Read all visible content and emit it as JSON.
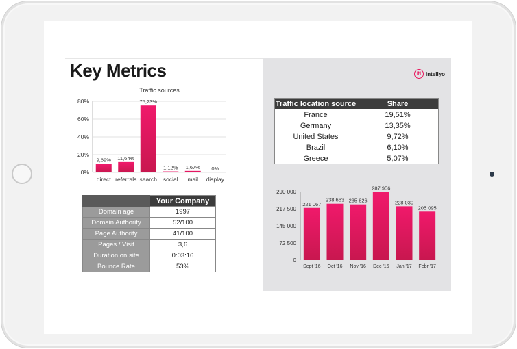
{
  "page": {
    "title": "Key Metrics",
    "brand": "intellyo",
    "brand_mark": "IN",
    "accent_color": "#e8175d"
  },
  "traffic_chart": {
    "title": "Traffic sources"
  },
  "company_table": {
    "header": "Your Company",
    "rows": [
      {
        "label": "Domain age",
        "value": "1997"
      },
      {
        "label": "Domain Authority",
        "value": "52/100"
      },
      {
        "label": "Page Authority",
        "value": "41/100"
      },
      {
        "label": "Pages / Visit",
        "value": "3,6"
      },
      {
        "label": "Duration on site",
        "value": "0:03:16"
      },
      {
        "label": "Bounce Rate",
        "value": "53%"
      }
    ]
  },
  "location_table": {
    "headers": [
      "Traffic location source",
      "Share"
    ],
    "rows": [
      {
        "location": "France",
        "share": "19,51%"
      },
      {
        "location": "Germany",
        "share": "13,35%"
      },
      {
        "location": "United States",
        "share": "9,72%"
      },
      {
        "location": "Brazil",
        "share": "6,10%"
      },
      {
        "location": "Greece",
        "share": "5,07%"
      }
    ]
  },
  "chart_data": [
    {
      "type": "bar",
      "title": "Traffic sources",
      "categories": [
        "direct",
        "referrals",
        "search",
        "social",
        "mail",
        "display"
      ],
      "values": [
        9.69,
        11.64,
        75.23,
        1.12,
        1.67,
        0
      ],
      "data_labels": [
        "9,69%",
        "11,64%",
        "75,23%",
        "1,12%",
        "1,67%",
        "0%"
      ],
      "yticks": [
        "0%",
        "20%",
        "40%",
        "60%",
        "80%"
      ],
      "ylim": [
        0,
        80
      ],
      "grid": true
    },
    {
      "type": "bar",
      "categories": [
        "Sept '16",
        "Oct '16",
        "Nov '16",
        "Dec '16",
        "Jan '17",
        "Febr '17"
      ],
      "values": [
        221067,
        238663,
        235826,
        287956,
        228030,
        205095
      ],
      "data_labels": [
        "221 067",
        "238 663",
        "235 826",
        "287 956",
        "228 030",
        "205 095"
      ],
      "yticks": [
        "0",
        "72 500",
        "145 000",
        "217 500",
        "290 000"
      ],
      "ylim": [
        0,
        290000
      ],
      "grid": false
    }
  ]
}
